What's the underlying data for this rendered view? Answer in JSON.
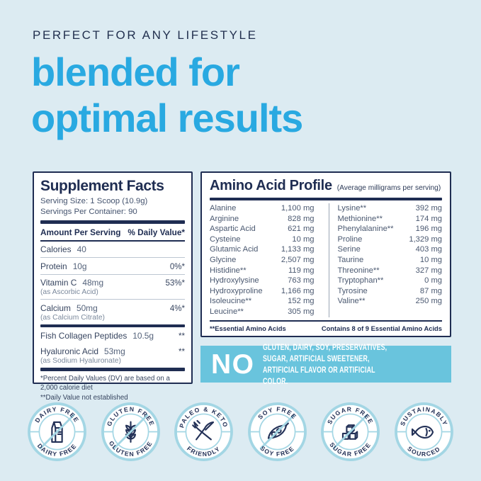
{
  "header": {
    "eyebrow": "PERFECT FOR ANY LIFESTYLE",
    "headline_line1": "blended for",
    "headline_line2": "optimal results"
  },
  "colors": {
    "navy": "#1f2d52",
    "accent_blue": "#29a9e1",
    "banner_blue": "#69c4dd",
    "badge_ring": "#a3d6e4",
    "icon_navy": "#233157",
    "page_bg": "#dcebf2"
  },
  "supplement_facts": {
    "title": "Supplement Facts",
    "serving_size": "Serving Size: 1 Scoop (10.9g)",
    "servings_per_container": "Servings Per Container: 90",
    "columns": {
      "amount": "Amount Per Serving",
      "daily_value": "% Daily Value*"
    },
    "rows": [
      {
        "name": "Calories",
        "amount": "40",
        "dv": "",
        "sub": "",
        "divider": "thin"
      },
      {
        "name": "Protein",
        "amount": "10g",
        "dv": "0%*",
        "sub": "",
        "divider": "thin"
      },
      {
        "name": "Vitamin C",
        "amount": "48mg",
        "dv": "53%*",
        "sub": "(as Ascorbic Acid)",
        "divider": "thin"
      },
      {
        "name": "Calcium",
        "amount": "50mg",
        "dv": "4%*",
        "sub": "(as Calcium Citrate)",
        "divider": "thick"
      },
      {
        "name": "Fish Collagen Peptides",
        "amount": "10.5g",
        "dv": "**",
        "sub": "",
        "divider": "none"
      },
      {
        "name": "Hyaluronic Acid",
        "amount": "53mg",
        "dv": "**",
        "sub": "(as Sodium Hyaluronate)",
        "divider": "thick"
      }
    ],
    "footnotes": [
      "*Percent Daily Values (DV) are based on a 2,000 calorie diet",
      "**Daily Value not established"
    ]
  },
  "amino_acid_profile": {
    "title": "Amino Acid Profile",
    "subtitle": "(Average milligrams per serving)",
    "left": [
      [
        "Alanine",
        "1,100 mg"
      ],
      [
        "Arginine",
        "828 mg"
      ],
      [
        "Aspartic Acid",
        "621 mg"
      ],
      [
        "Cysteine",
        "10 mg"
      ],
      [
        "Glutamic Acid",
        "1,133 mg"
      ],
      [
        "Glycine",
        "2,507 mg"
      ],
      [
        "Histidine**",
        "119 mg"
      ],
      [
        "Hydroxylysine",
        "763 mg"
      ],
      [
        "Hydroxyproline",
        "1,166 mg"
      ],
      [
        "Isoleucine**",
        "152 mg"
      ],
      [
        "Leucine**",
        "305 mg"
      ]
    ],
    "right": [
      [
        "Lysine**",
        "392 mg"
      ],
      [
        "Methionine**",
        "174 mg"
      ],
      [
        "Phenylalanine**",
        "196 mg"
      ],
      [
        "Proline",
        "1,329 mg"
      ],
      [
        "Serine",
        "403 mg"
      ],
      [
        "Taurine",
        "10 mg"
      ],
      [
        "Threonine**",
        "327 mg"
      ],
      [
        "Tryptophan**",
        "0 mg"
      ],
      [
        "Tyrosine",
        "87 mg"
      ],
      [
        "Valine**",
        "250 mg"
      ]
    ],
    "footnote_left": "**Essential Amino Acids",
    "footnote_right": "Contains 8 of 9 Essential Amino Acids"
  },
  "banner": {
    "no": "NO",
    "text": "GLUTEN, DAIRY, SOY, PRESERVATIVES, SUGAR, ARTIFICIAL SWEETENER, ARTIFICIAL FLAVOR OR ARTIFICIAL COLOR."
  },
  "badges": [
    {
      "top": "DAIRY FREE",
      "bottom": "DAIRY FREE",
      "icon": "milk-carton-icon",
      "slash": true
    },
    {
      "top": "GLUTEN FREE",
      "bottom": "GLUTEN FREE",
      "icon": "wheat-icon",
      "slash": true
    },
    {
      "top": "PALEO & KETO",
      "bottom": "FRIENDLY",
      "icon": "fork-knife-icon",
      "slash": false
    },
    {
      "top": "SOY FREE",
      "bottom": "SOY FREE",
      "icon": "soy-pod-icon",
      "slash": true
    },
    {
      "top": "SUGAR FREE",
      "bottom": "SUGAR FREE",
      "icon": "sugar-cubes-icon",
      "slash": true
    },
    {
      "top": "SUSTAINABLY",
      "bottom": "SOURCED",
      "icon": "fish-icon",
      "slash": false
    }
  ]
}
